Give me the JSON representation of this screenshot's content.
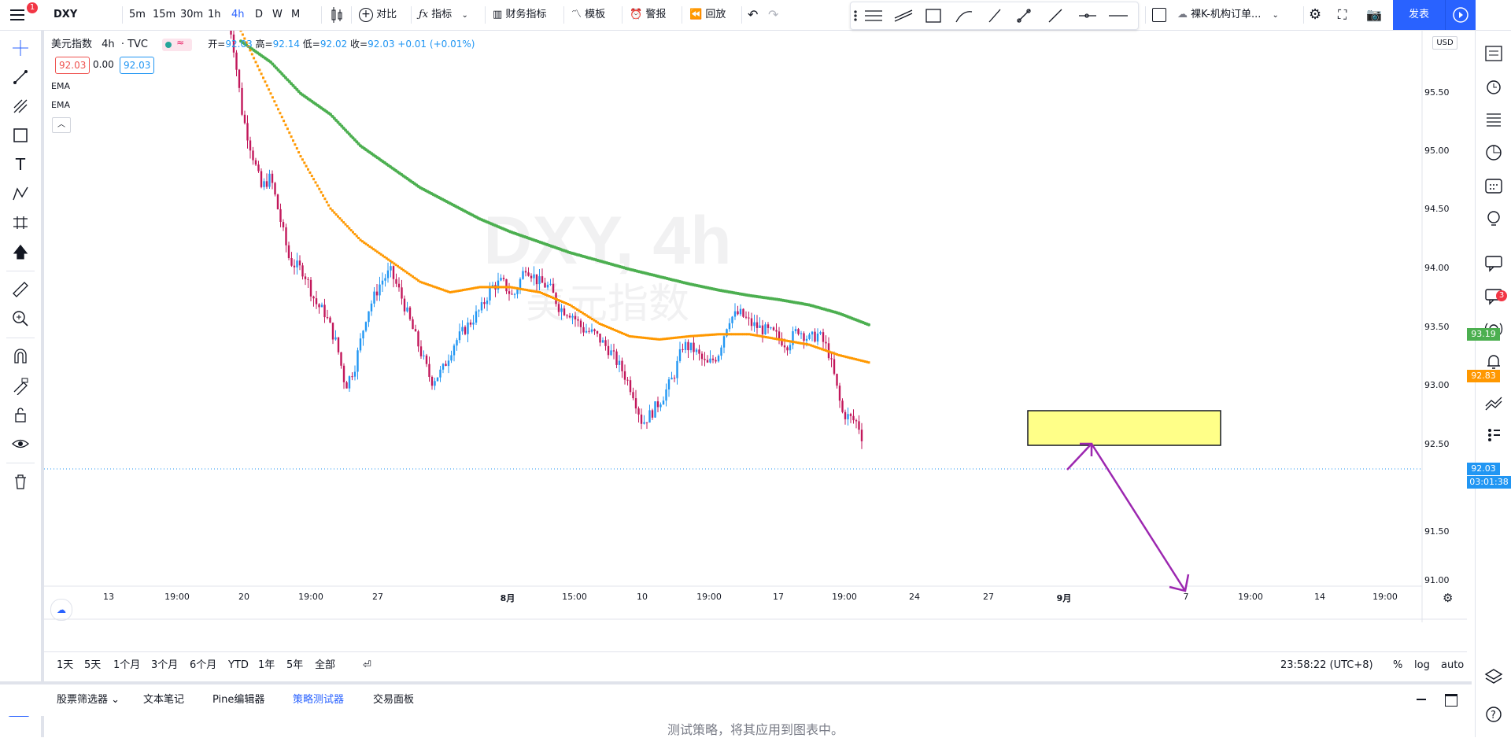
{
  "topbar": {
    "symbol": "DXY",
    "notification_badge": "1",
    "intervals": [
      "5m",
      "15m",
      "30m",
      "1h",
      "4h",
      "D",
      "W",
      "M"
    ],
    "active_interval": "4h",
    "compare_label": "对比",
    "indicators_label": "指标",
    "financials_label": "财务指标",
    "templates_label": "模板",
    "alert_label": "警报",
    "replay_label": "回放",
    "template_select": "裸K-机构订单...",
    "publish_label": "发表"
  },
  "legend": {
    "title": "美元指数",
    "interval": "4h",
    "source": "TVC",
    "open_label": "开=",
    "open": "92.03",
    "high_label": "高=",
    "high": "92.14",
    "low_label": "低=",
    "low": "92.02",
    "close_label": "收=",
    "close": "92.03",
    "change": "+0.01",
    "change_pct": "(+0.01%)",
    "bid": "92.03",
    "spread": "0.00",
    "ask": "92.03",
    "ema1": "EMA",
    "ema2": "EMA"
  },
  "watermark": {
    "line1": "DXY, 4h",
    "line2": "美元指数"
  },
  "price_axis": {
    "currency": "USD",
    "ticks": [
      "95.50",
      "95.00",
      "94.50",
      "94.00",
      "93.50",
      "93.00",
      "92.50",
      "91.50",
      "91.00"
    ],
    "ema_slow_tag": "93.19",
    "ema_fast_tag": "92.83",
    "last_price_tag": "92.03",
    "countdown": "03:01:38"
  },
  "time_axis": {
    "ticks": [
      "13",
      "19:00",
      "20",
      "19:00",
      "27",
      "8月",
      "15:00",
      "10",
      "19:00",
      "17",
      "19:00",
      "24",
      "27",
      "9月",
      "7",
      "19:00",
      "14",
      "19:00"
    ]
  },
  "colors": {
    "up": "#26a69a",
    "up_alt": "#2196f3",
    "down": "#ef5350",
    "down_alt": "#c2185b",
    "ema_slow": "#4caf50",
    "ema_fast": "#ff9800",
    "zone": "#ffff88",
    "arrow": "#9c27b0",
    "accent": "#2962ff"
  },
  "range_bar": {
    "ranges": [
      "1天",
      "5天",
      "1个月",
      "3个月",
      "6个月",
      "YTD",
      "1年",
      "5年",
      "全部"
    ],
    "clock": "23:58:22 (UTC+8)",
    "percent": "%",
    "log": "log",
    "auto": "auto"
  },
  "bottom_panel": {
    "tabs": [
      "股票筛选器",
      "文本笔记",
      "Pine编辑器",
      "策略测试器",
      "交易面板"
    ],
    "active_tab": "策略测试器",
    "message": "测试策略，将其应用到图表中。"
  },
  "right_tools": {
    "notification_badge": "3"
  },
  "chart_data": {
    "type": "candlestick",
    "ylim": [
      90.7,
      96.0
    ],
    "ema_slow": [
      95.9,
      95.7,
      95.4,
      95.2,
      94.9,
      94.7,
      94.5,
      94.35,
      94.2,
      94.08,
      93.98,
      93.88,
      93.8,
      93.72,
      93.65,
      93.58,
      93.52,
      93.47,
      93.43,
      93.38,
      93.3,
      93.19
    ],
    "ema_fast": [
      96.0,
      95.4,
      94.8,
      94.3,
      94.0,
      93.8,
      93.6,
      93.5,
      93.55,
      93.55,
      93.5,
      93.38,
      93.2,
      93.08,
      93.05,
      93.08,
      93.1,
      93.1,
      93.05,
      93.0,
      92.9,
      92.83
    ]
  }
}
